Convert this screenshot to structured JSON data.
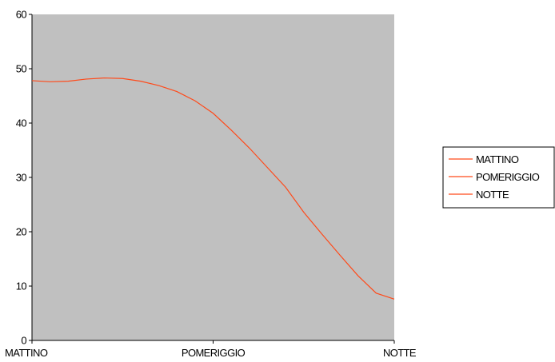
{
  "chart_data": {
    "type": "line",
    "categories": [
      "MATTINO",
      "POMERIGGIO",
      "NOTTE"
    ],
    "x": [
      0,
      0.1,
      0.2,
      0.3,
      0.4,
      0.5,
      0.6,
      0.7,
      0.8,
      0.9,
      1.0,
      1.1,
      1.2,
      1.3,
      1.4,
      1.5,
      1.6,
      1.7,
      1.8,
      1.9,
      2.0
    ],
    "series": [
      {
        "values": [
          47.8,
          47.6,
          47.7,
          48.1,
          48.3,
          48.2,
          47.7,
          46.9,
          45.8,
          44.1,
          41.8,
          38.7,
          35.4,
          31.8,
          28.2,
          23.6,
          19.6,
          15.7,
          11.9,
          8.7,
          7.6
        ],
        "color": "#ff4a1a"
      }
    ],
    "ylim": [
      0,
      60
    ],
    "yticks": [
      "0",
      "10",
      "20",
      "30",
      "40",
      "50",
      "60"
    ],
    "legend": {
      "position": "right",
      "entries": [
        "MATTINO",
        "POMERIGGIO",
        "NOTTE"
      ]
    },
    "plot_background": "#c0c0c0",
    "grid": false
  }
}
